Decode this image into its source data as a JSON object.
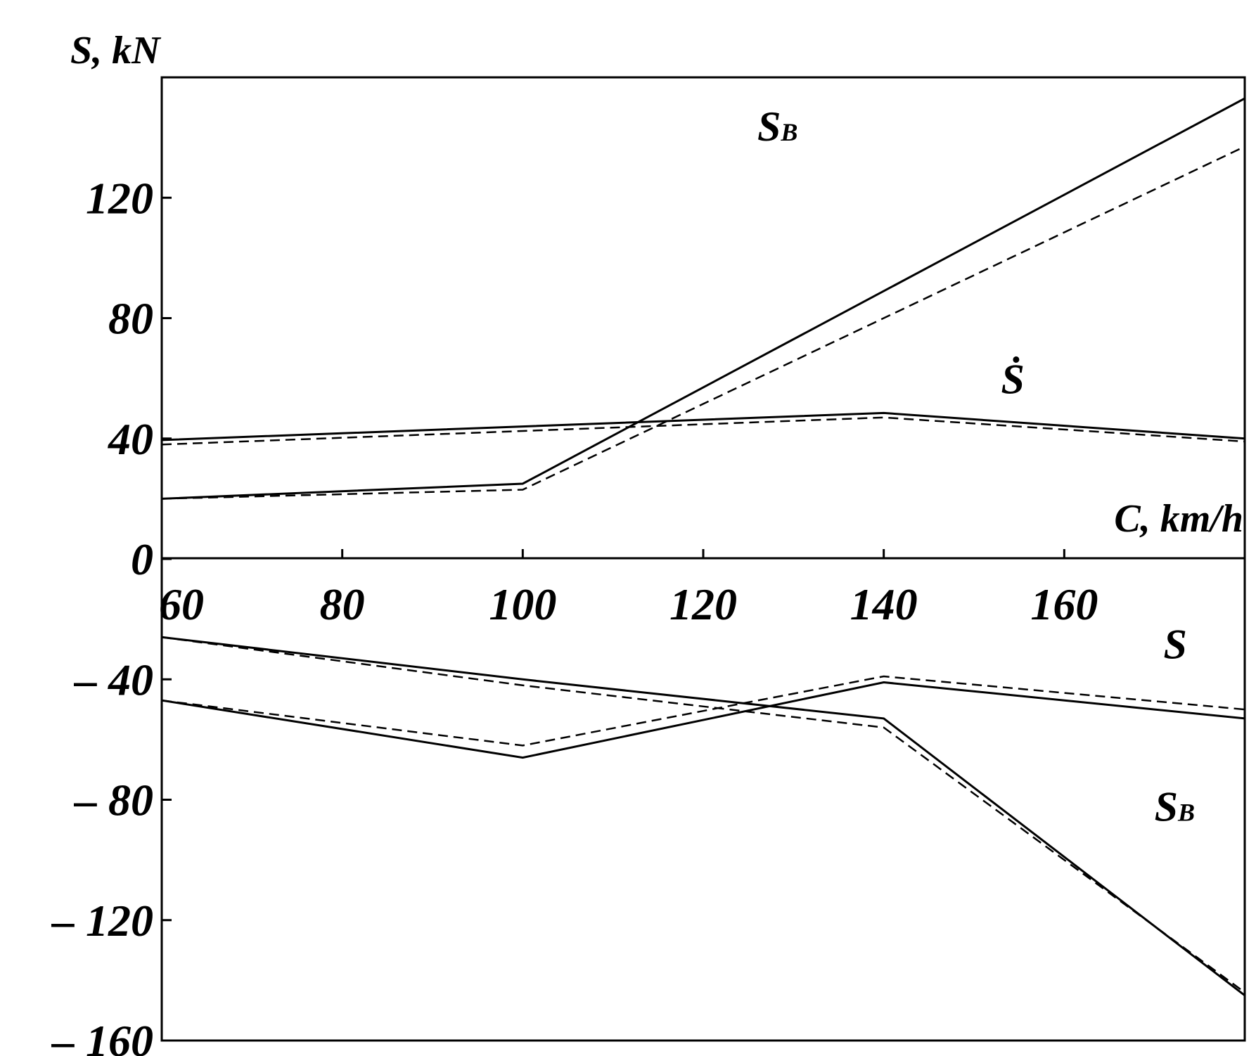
{
  "chart_data": {
    "type": "line",
    "ylabel": "S, kN",
    "xlabel": "C, km/h",
    "xlim": [
      60,
      180
    ],
    "ylim": [
      -160,
      160
    ],
    "x_ticks": [
      60,
      80,
      100,
      120,
      140,
      160
    ],
    "y_ticks": [
      {
        "value": 120,
        "label": "120"
      },
      {
        "value": 80,
        "label": "80"
      },
      {
        "value": 40,
        "label": "40"
      },
      {
        "value": 0,
        "label": "0"
      },
      {
        "value": -40,
        "label": "– 40"
      },
      {
        "value": -80,
        "label": "– 80"
      },
      {
        "value": -120,
        "label": "– 120"
      },
      {
        "value": -160,
        "label": "– 160"
      }
    ],
    "grid": false,
    "series": [
      {
        "style": "solid",
        "x": [
          60,
          100,
          180
        ],
        "y": [
          20,
          25,
          153
        ]
      },
      {
        "style": "dashed",
        "x": [
          60,
          100,
          180
        ],
        "y": [
          20,
          23,
          137
        ]
      },
      {
        "style": "solid",
        "x": [
          60,
          100,
          140,
          180
        ],
        "y": [
          39.5,
          44,
          48.5,
          40
        ]
      },
      {
        "style": "dashed",
        "x": [
          60,
          100,
          140,
          180
        ],
        "y": [
          38,
          42.5,
          47,
          39
        ]
      },
      {
        "style": "solid",
        "x": [
          60,
          100,
          140,
          180
        ],
        "y": [
          -26,
          -40,
          -53,
          -145
        ]
      },
      {
        "style": "dashed",
        "x": [
          60,
          100,
          140,
          180
        ],
        "y": [
          -26,
          -42,
          -56,
          -144
        ]
      },
      {
        "style": "solid",
        "x": [
          60,
          100,
          140,
          180
        ],
        "y": [
          -47,
          -66,
          -41,
          -53
        ]
      },
      {
        "style": "dashed",
        "x": [
          60,
          100,
          140,
          180
        ],
        "y": [
          -47,
          -62,
          -39,
          -50
        ]
      }
    ],
    "annotations": [
      {
        "main": "S",
        "sub": "B",
        "x": 126,
        "y": 139
      },
      {
        "main": "Ṡ",
        "sub": "",
        "x": 153,
        "y": 55
      },
      {
        "main": "S",
        "sub": "",
        "x": 171,
        "y": -33
      },
      {
        "main": "S",
        "sub": "B",
        "x": 170,
        "y": -87
      }
    ]
  }
}
